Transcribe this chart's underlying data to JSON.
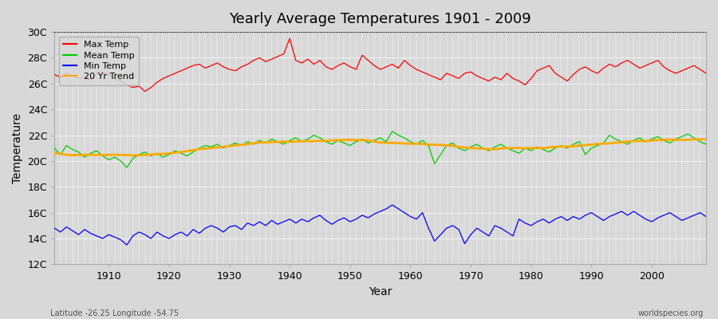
{
  "title": "Yearly Average Temperatures 1901 - 2009",
  "xlabel": "Year",
  "ylabel": "Temperature",
  "footnote_left": "Latitude -26.25 Longitude -54.75",
  "footnote_right": "worldspecies.org",
  "ylim": [
    12,
    30
  ],
  "yticks": [
    12,
    14,
    16,
    18,
    20,
    22,
    24,
    26,
    28,
    30
  ],
  "ytick_labels": [
    "12C",
    "14C",
    "16C",
    "18C",
    "20C",
    "22C",
    "24C",
    "26C",
    "28C",
    "30C"
  ],
  "xlim": [
    1901,
    2009
  ],
  "xticks": [
    1910,
    1920,
    1930,
    1940,
    1950,
    1960,
    1970,
    1980,
    1990,
    2000
  ],
  "legend_labels": [
    "Max Temp",
    "Mean Temp",
    "Min Temp",
    "20 Yr Trend"
  ],
  "legend_colors": [
    "#ff0000",
    "#00cc00",
    "#0000ff",
    "#ffaa00"
  ],
  "bg_color": "#d8d8d8",
  "plot_bg_color": "#d8d8d8",
  "grid_color": "#ffffff",
  "line_colors": {
    "max": "#ff0000",
    "mean": "#00cc00",
    "min": "#0000ff",
    "trend": "#ffaa00"
  },
  "max_temp": [
    26.7,
    26.5,
    26.8,
    26.6,
    26.4,
    26.5,
    26.3,
    26.8,
    26.9,
    26.7,
    26.4,
    26.2,
    25.9,
    25.7,
    25.8,
    25.4,
    25.7,
    26.1,
    26.4,
    26.6,
    26.8,
    27.0,
    27.2,
    27.4,
    27.5,
    27.2,
    27.4,
    27.6,
    27.3,
    27.1,
    27.0,
    27.3,
    27.5,
    27.8,
    28.0,
    27.7,
    27.9,
    28.1,
    28.3,
    29.5,
    27.8,
    27.6,
    27.9,
    27.5,
    27.8,
    27.3,
    27.1,
    27.4,
    27.6,
    27.3,
    27.1,
    28.2,
    27.8,
    27.4,
    27.1,
    27.3,
    27.5,
    27.2,
    27.8,
    27.4,
    27.1,
    26.9,
    26.7,
    26.5,
    26.3,
    26.8,
    26.6,
    26.4,
    26.8,
    26.9,
    26.6,
    26.4,
    26.2,
    26.5,
    26.3,
    26.8,
    26.4,
    26.2,
    25.9,
    26.4,
    27.0,
    27.2,
    27.4,
    26.8,
    26.5,
    26.2,
    26.7,
    27.1,
    27.3,
    27.0,
    26.8,
    27.2,
    27.5,
    27.3,
    27.6,
    27.8,
    27.5,
    27.2,
    27.4,
    27.6,
    27.8,
    27.3,
    27.0,
    26.8,
    27.0,
    27.2,
    27.4,
    27.1,
    26.8
  ],
  "mean_temp": [
    21.0,
    20.5,
    21.2,
    20.9,
    20.7,
    20.3,
    20.6,
    20.8,
    20.4,
    20.1,
    20.3,
    20.0,
    19.5,
    20.2,
    20.5,
    20.7,
    20.4,
    20.6,
    20.3,
    20.5,
    20.8,
    20.6,
    20.4,
    20.7,
    21.0,
    21.2,
    21.1,
    21.3,
    21.0,
    21.2,
    21.4,
    21.2,
    21.5,
    21.3,
    21.6,
    21.4,
    21.7,
    21.5,
    21.3,
    21.6,
    21.8,
    21.5,
    21.7,
    22.0,
    21.8,
    21.5,
    21.3,
    21.6,
    21.4,
    21.2,
    21.5,
    21.7,
    21.4,
    21.6,
    21.8,
    21.5,
    22.3,
    22.0,
    21.8,
    21.5,
    21.3,
    21.6,
    21.2,
    19.8,
    20.5,
    21.2,
    21.4,
    21.0,
    20.8,
    21.1,
    21.3,
    21.0,
    20.8,
    21.1,
    21.3,
    21.0,
    20.8,
    20.6,
    21.0,
    20.8,
    21.1,
    20.9,
    20.7,
    21.0,
    21.2,
    21.0,
    21.3,
    21.5,
    20.5,
    21.0,
    21.2,
    21.4,
    22.0,
    21.7,
    21.5,
    21.3,
    21.6,
    21.8,
    21.5,
    21.7,
    21.9,
    21.6,
    21.4,
    21.7,
    21.9,
    22.1,
    21.8,
    21.5,
    21.3
  ],
  "min_temp": [
    14.8,
    14.5,
    14.9,
    14.6,
    14.3,
    14.7,
    14.4,
    14.2,
    14.0,
    14.3,
    14.1,
    13.9,
    13.5,
    14.2,
    14.5,
    14.3,
    14.0,
    14.5,
    14.2,
    14.0,
    14.3,
    14.5,
    14.2,
    14.7,
    14.4,
    14.8,
    15.0,
    14.8,
    14.5,
    14.9,
    15.0,
    14.7,
    15.2,
    15.0,
    15.3,
    15.0,
    15.4,
    15.1,
    15.3,
    15.5,
    15.2,
    15.5,
    15.3,
    15.6,
    15.8,
    15.4,
    15.1,
    15.4,
    15.6,
    15.3,
    15.5,
    15.8,
    15.6,
    15.9,
    16.1,
    16.3,
    16.6,
    16.3,
    16.0,
    15.7,
    15.5,
    16.0,
    14.8,
    13.8,
    14.3,
    14.8,
    15.0,
    14.7,
    13.6,
    14.3,
    14.8,
    14.5,
    14.2,
    15.0,
    14.8,
    14.5,
    14.2,
    15.5,
    15.2,
    15.0,
    15.3,
    15.5,
    15.2,
    15.5,
    15.7,
    15.4,
    15.7,
    15.5,
    15.8,
    16.0,
    15.7,
    15.4,
    15.7,
    15.9,
    16.1,
    15.8,
    16.1,
    15.8,
    15.5,
    15.3,
    15.6,
    15.8,
    16.0,
    15.7,
    15.4,
    15.6,
    15.8,
    16.0,
    15.7
  ]
}
